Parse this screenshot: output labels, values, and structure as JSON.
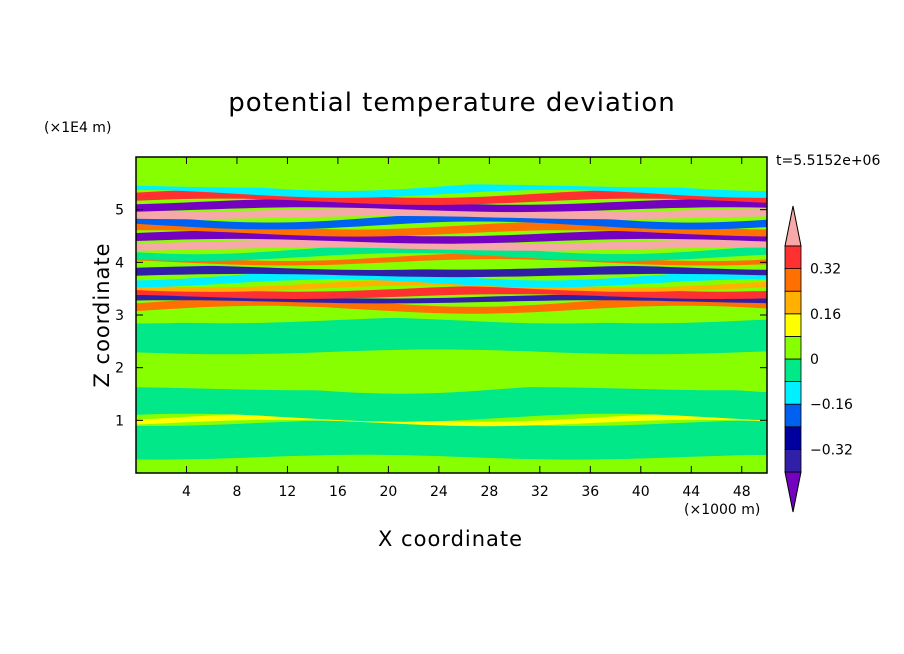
{
  "chart_data": {
    "type": "heatmap",
    "title": "potential temperature deviation",
    "xlabel": "X coordinate",
    "ylabel": "Z coordinate",
    "x_unit": "(×1000 m)",
    "y_unit": "(×1E4 m)",
    "time_label": "t=5.5152e+06",
    "xlim": [
      0,
      50
    ],
    "ylim": [
      0,
      6
    ],
    "x_ticks": [
      4,
      8,
      12,
      16,
      20,
      24,
      28,
      32,
      36,
      40,
      44,
      48
    ],
    "y_ticks": [
      1,
      2,
      3,
      4,
      5
    ],
    "colorbar": {
      "levels": [
        -0.48,
        -0.4,
        -0.32,
        -0.24,
        -0.16,
        -0.08,
        0,
        0.08,
        0.16,
        0.24,
        0.32,
        0.4,
        0.48
      ],
      "tick_labels": [
        "0.32",
        "0.16",
        "0",
        "−0.16",
        "−0.32"
      ],
      "tick_values": [
        0.32,
        0.16,
        0,
        -0.16,
        -0.32
      ],
      "colors": [
        "#7400c0",
        "#3020a8",
        "#0000a0",
        "#0060f0",
        "#00f0ff",
        "#00e887",
        "#88ff00",
        "#ffff00",
        "#ffb000",
        "#ff7000",
        "#ff3030",
        "#f7a8a8"
      ],
      "extend": "both"
    },
    "field_bands": [
      {
        "z": [
          0.0,
          0.3
        ],
        "value": 0.03
      },
      {
        "z": [
          0.3,
          0.95
        ],
        "value": -0.02
      },
      {
        "z": [
          0.95,
          1.05
        ],
        "value": 0.1
      },
      {
        "z": [
          1.05,
          1.6
        ],
        "value": -0.03
      },
      {
        "z": [
          1.6,
          2.3
        ],
        "value": 0.02
      },
      {
        "z": [
          2.3,
          2.9
        ],
        "value": -0.02
      },
      {
        "z": [
          2.9,
          3.1
        ],
        "value": 0.04
      },
      {
        "z": [
          3.1,
          3.25
        ],
        "value": 0.3
      },
      {
        "z": [
          3.25,
          3.35
        ],
        "value": -0.4
      },
      {
        "z": [
          3.35,
          3.5
        ],
        "value": 0.36
      },
      {
        "z": [
          3.5,
          3.6
        ],
        "value": 0.2
      },
      {
        "z": [
          3.6,
          3.75
        ],
        "value": -0.1
      },
      {
        "z": [
          3.75,
          3.9
        ],
        "value": -0.38
      },
      {
        "z": [
          3.9,
          4.0
        ],
        "value": 0.05
      },
      {
        "z": [
          4.0,
          4.1
        ],
        "value": 0.25
      },
      {
        "z": [
          4.1,
          4.25
        ],
        "value": -0.05
      },
      {
        "z": [
          4.25,
          4.4
        ],
        "value": 0.4
      },
      {
        "z": [
          4.4,
          4.55
        ],
        "value": -0.44
      },
      {
        "z": [
          4.55,
          4.7
        ],
        "value": 0.28
      },
      {
        "z": [
          4.7,
          4.85
        ],
        "value": -0.2
      },
      {
        "z": [
          4.85,
          5.0
        ],
        "value": 0.44
      },
      {
        "z": [
          5.0,
          5.15
        ],
        "value": -0.45
      },
      {
        "z": [
          5.15,
          5.3
        ],
        "value": 0.35
      },
      {
        "z": [
          5.3,
          5.45
        ],
        "value": -0.12
      },
      {
        "z": [
          5.45,
          6.0
        ],
        "value": 0.03
      }
    ]
  }
}
